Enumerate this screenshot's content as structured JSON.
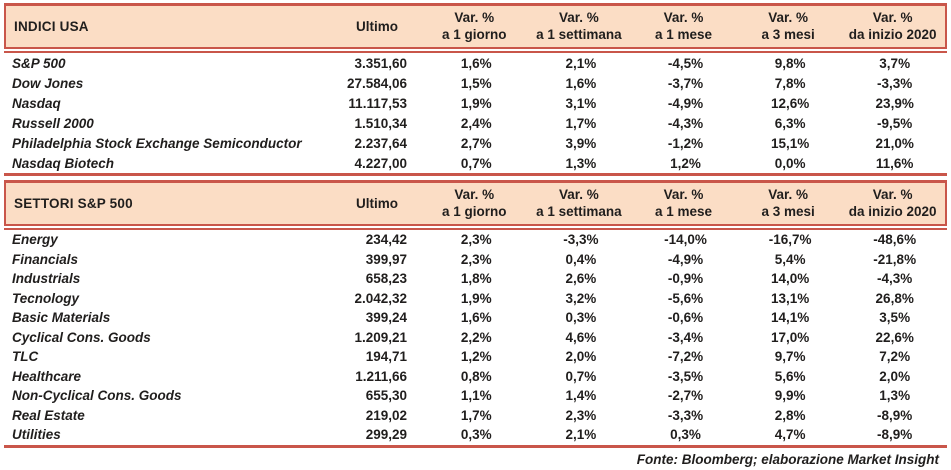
{
  "colors": {
    "line_red": "#c9564a",
    "header_bg": "#fbddc5",
    "text": "#201e1d"
  },
  "col_headers": {
    "ultimo": "Ultimo",
    "var_label": "Var. %",
    "periods": [
      "a 1 giorno",
      "a 1 settimana",
      "a 1 mese",
      "a 3 mesi",
      "da inizio 2020"
    ]
  },
  "tables": [
    {
      "title": "INDICI USA",
      "rows": [
        {
          "name": "S&P 500",
          "ultimo": "3.351,60",
          "vars": [
            "1,6%",
            "2,1%",
            "-4,5%",
            "9,8%",
            "3,7%"
          ]
        },
        {
          "name": "Dow Jones",
          "ultimo": "27.584,06",
          "vars": [
            "1,5%",
            "1,6%",
            "-3,7%",
            "7,8%",
            "-3,3%"
          ]
        },
        {
          "name": "Nasdaq",
          "ultimo": "11.117,53",
          "vars": [
            "1,9%",
            "3,1%",
            "-4,9%",
            "12,6%",
            "23,9%"
          ]
        },
        {
          "name": "Russell 2000",
          "ultimo": "1.510,34",
          "vars": [
            "2,4%",
            "1,7%",
            "-4,3%",
            "6,3%",
            "-9,5%"
          ]
        },
        {
          "name": "Philadelphia Stock Exchange Semiconductor",
          "ultimo": "2.237,64",
          "vars": [
            "2,7%",
            "3,9%",
            "-1,2%",
            "15,1%",
            "21,0%"
          ]
        },
        {
          "name": "Nasdaq Biotech",
          "ultimo": "4.227,00",
          "vars": [
            "0,7%",
            "1,3%",
            "1,2%",
            "0,0%",
            "11,6%"
          ]
        }
      ]
    },
    {
      "title": "SETTORI S&P 500",
      "rows": [
        {
          "name": "Energy",
          "ultimo": "234,42",
          "vars": [
            "2,3%",
            "-3,3%",
            "-14,0%",
            "-16,7%",
            "-48,6%"
          ]
        },
        {
          "name": "Financials",
          "ultimo": "399,97",
          "vars": [
            "2,3%",
            "0,4%",
            "-4,9%",
            "5,4%",
            "-21,8%"
          ]
        },
        {
          "name": "Industrials",
          "ultimo": "658,23",
          "vars": [
            "1,8%",
            "2,6%",
            "-0,9%",
            "14,0%",
            "-4,3%"
          ]
        },
        {
          "name": "Tecnology",
          "ultimo": "2.042,32",
          "vars": [
            "1,9%",
            "3,2%",
            "-5,6%",
            "13,1%",
            "26,8%"
          ]
        },
        {
          "name": "Basic Materials",
          "ultimo": "399,24",
          "vars": [
            "1,6%",
            "0,3%",
            "-0,6%",
            "14,1%",
            "3,5%"
          ]
        },
        {
          "name": "Cyclical Cons. Goods",
          "ultimo": "1.209,21",
          "vars": [
            "2,2%",
            "4,6%",
            "-3,4%",
            "17,0%",
            "22,6%"
          ]
        },
        {
          "name": "TLC",
          "ultimo": "194,71",
          "vars": [
            "1,2%",
            "2,0%",
            "-7,2%",
            "9,7%",
            "7,2%"
          ]
        },
        {
          "name": "Healthcare",
          "ultimo": "1.211,66",
          "vars": [
            "0,8%",
            "0,7%",
            "-3,5%",
            "5,6%",
            "2,0%"
          ]
        },
        {
          "name": "Non-Cyclical Cons. Goods",
          "ultimo": "655,30",
          "vars": [
            "1,1%",
            "1,4%",
            "-2,7%",
            "9,9%",
            "1,3%"
          ]
        },
        {
          "name": "Real Estate",
          "ultimo": "219,02",
          "vars": [
            "1,7%",
            "2,3%",
            "-3,3%",
            "2,8%",
            "-8,9%"
          ]
        },
        {
          "name": "Utilities",
          "ultimo": "299,29",
          "vars": [
            "0,3%",
            "2,1%",
            "0,3%",
            "4,7%",
            "-8,9%"
          ]
        }
      ]
    }
  ],
  "footer": "Fonte: Bloomberg; elaborazione Market Insight"
}
